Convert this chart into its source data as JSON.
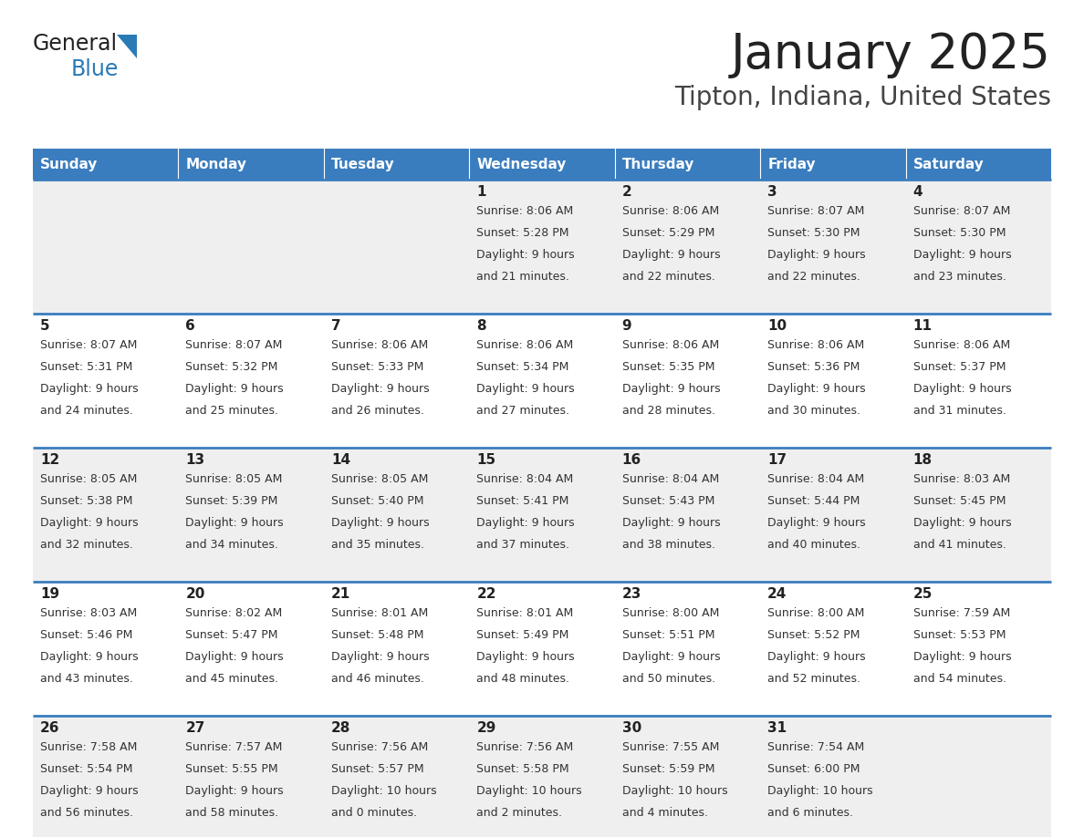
{
  "title": "January 2025",
  "subtitle": "Tipton, Indiana, United States",
  "days_of_week": [
    "Sunday",
    "Monday",
    "Tuesday",
    "Wednesday",
    "Thursday",
    "Friday",
    "Saturday"
  ],
  "header_bg": "#3a7dbf",
  "header_text": "#ffffff",
  "row_bg_odd": "#efefef",
  "row_bg_even": "#ffffff",
  "cell_text_color": "#333333",
  "day_num_color": "#222222",
  "border_color": "#3a7dbf",
  "title_color": "#222222",
  "subtitle_color": "#444444",
  "logo_general_color": "#222222",
  "logo_blue_color": "#2a7ab5",
  "weeks": [
    [
      {
        "day": "",
        "sunrise": "",
        "sunset": "",
        "daylight": ""
      },
      {
        "day": "",
        "sunrise": "",
        "sunset": "",
        "daylight": ""
      },
      {
        "day": "",
        "sunrise": "",
        "sunset": "",
        "daylight": ""
      },
      {
        "day": "1",
        "sunrise": "Sunrise: 8:06 AM",
        "sunset": "Sunset: 5:28 PM",
        "daylight": "Daylight: 9 hours\nand 21 minutes."
      },
      {
        "day": "2",
        "sunrise": "Sunrise: 8:06 AM",
        "sunset": "Sunset: 5:29 PM",
        "daylight": "Daylight: 9 hours\nand 22 minutes."
      },
      {
        "day": "3",
        "sunrise": "Sunrise: 8:07 AM",
        "sunset": "Sunset: 5:30 PM",
        "daylight": "Daylight: 9 hours\nand 22 minutes."
      },
      {
        "day": "4",
        "sunrise": "Sunrise: 8:07 AM",
        "sunset": "Sunset: 5:30 PM",
        "daylight": "Daylight: 9 hours\nand 23 minutes."
      }
    ],
    [
      {
        "day": "5",
        "sunrise": "Sunrise: 8:07 AM",
        "sunset": "Sunset: 5:31 PM",
        "daylight": "Daylight: 9 hours\nand 24 minutes."
      },
      {
        "day": "6",
        "sunrise": "Sunrise: 8:07 AM",
        "sunset": "Sunset: 5:32 PM",
        "daylight": "Daylight: 9 hours\nand 25 minutes."
      },
      {
        "day": "7",
        "sunrise": "Sunrise: 8:06 AM",
        "sunset": "Sunset: 5:33 PM",
        "daylight": "Daylight: 9 hours\nand 26 minutes."
      },
      {
        "day": "8",
        "sunrise": "Sunrise: 8:06 AM",
        "sunset": "Sunset: 5:34 PM",
        "daylight": "Daylight: 9 hours\nand 27 minutes."
      },
      {
        "day": "9",
        "sunrise": "Sunrise: 8:06 AM",
        "sunset": "Sunset: 5:35 PM",
        "daylight": "Daylight: 9 hours\nand 28 minutes."
      },
      {
        "day": "10",
        "sunrise": "Sunrise: 8:06 AM",
        "sunset": "Sunset: 5:36 PM",
        "daylight": "Daylight: 9 hours\nand 30 minutes."
      },
      {
        "day": "11",
        "sunrise": "Sunrise: 8:06 AM",
        "sunset": "Sunset: 5:37 PM",
        "daylight": "Daylight: 9 hours\nand 31 minutes."
      }
    ],
    [
      {
        "day": "12",
        "sunrise": "Sunrise: 8:05 AM",
        "sunset": "Sunset: 5:38 PM",
        "daylight": "Daylight: 9 hours\nand 32 minutes."
      },
      {
        "day": "13",
        "sunrise": "Sunrise: 8:05 AM",
        "sunset": "Sunset: 5:39 PM",
        "daylight": "Daylight: 9 hours\nand 34 minutes."
      },
      {
        "day": "14",
        "sunrise": "Sunrise: 8:05 AM",
        "sunset": "Sunset: 5:40 PM",
        "daylight": "Daylight: 9 hours\nand 35 minutes."
      },
      {
        "day": "15",
        "sunrise": "Sunrise: 8:04 AM",
        "sunset": "Sunset: 5:41 PM",
        "daylight": "Daylight: 9 hours\nand 37 minutes."
      },
      {
        "day": "16",
        "sunrise": "Sunrise: 8:04 AM",
        "sunset": "Sunset: 5:43 PM",
        "daylight": "Daylight: 9 hours\nand 38 minutes."
      },
      {
        "day": "17",
        "sunrise": "Sunrise: 8:04 AM",
        "sunset": "Sunset: 5:44 PM",
        "daylight": "Daylight: 9 hours\nand 40 minutes."
      },
      {
        "day": "18",
        "sunrise": "Sunrise: 8:03 AM",
        "sunset": "Sunset: 5:45 PM",
        "daylight": "Daylight: 9 hours\nand 41 minutes."
      }
    ],
    [
      {
        "day": "19",
        "sunrise": "Sunrise: 8:03 AM",
        "sunset": "Sunset: 5:46 PM",
        "daylight": "Daylight: 9 hours\nand 43 minutes."
      },
      {
        "day": "20",
        "sunrise": "Sunrise: 8:02 AM",
        "sunset": "Sunset: 5:47 PM",
        "daylight": "Daylight: 9 hours\nand 45 minutes."
      },
      {
        "day": "21",
        "sunrise": "Sunrise: 8:01 AM",
        "sunset": "Sunset: 5:48 PM",
        "daylight": "Daylight: 9 hours\nand 46 minutes."
      },
      {
        "day": "22",
        "sunrise": "Sunrise: 8:01 AM",
        "sunset": "Sunset: 5:49 PM",
        "daylight": "Daylight: 9 hours\nand 48 minutes."
      },
      {
        "day": "23",
        "sunrise": "Sunrise: 8:00 AM",
        "sunset": "Sunset: 5:51 PM",
        "daylight": "Daylight: 9 hours\nand 50 minutes."
      },
      {
        "day": "24",
        "sunrise": "Sunrise: 8:00 AM",
        "sunset": "Sunset: 5:52 PM",
        "daylight": "Daylight: 9 hours\nand 52 minutes."
      },
      {
        "day": "25",
        "sunrise": "Sunrise: 7:59 AM",
        "sunset": "Sunset: 5:53 PM",
        "daylight": "Daylight: 9 hours\nand 54 minutes."
      }
    ],
    [
      {
        "day": "26",
        "sunrise": "Sunrise: 7:58 AM",
        "sunset": "Sunset: 5:54 PM",
        "daylight": "Daylight: 9 hours\nand 56 minutes."
      },
      {
        "day": "27",
        "sunrise": "Sunrise: 7:57 AM",
        "sunset": "Sunset: 5:55 PM",
        "daylight": "Daylight: 9 hours\nand 58 minutes."
      },
      {
        "day": "28",
        "sunrise": "Sunrise: 7:56 AM",
        "sunset": "Sunset: 5:57 PM",
        "daylight": "Daylight: 10 hours\nand 0 minutes."
      },
      {
        "day": "29",
        "sunrise": "Sunrise: 7:56 AM",
        "sunset": "Sunset: 5:58 PM",
        "daylight": "Daylight: 10 hours\nand 2 minutes."
      },
      {
        "day": "30",
        "sunrise": "Sunrise: 7:55 AM",
        "sunset": "Sunset: 5:59 PM",
        "daylight": "Daylight: 10 hours\nand 4 minutes."
      },
      {
        "day": "31",
        "sunrise": "Sunrise: 7:54 AM",
        "sunset": "Sunset: 6:00 PM",
        "daylight": "Daylight: 10 hours\nand 6 minutes."
      },
      {
        "day": "",
        "sunrise": "",
        "sunset": "",
        "daylight": ""
      }
    ]
  ]
}
